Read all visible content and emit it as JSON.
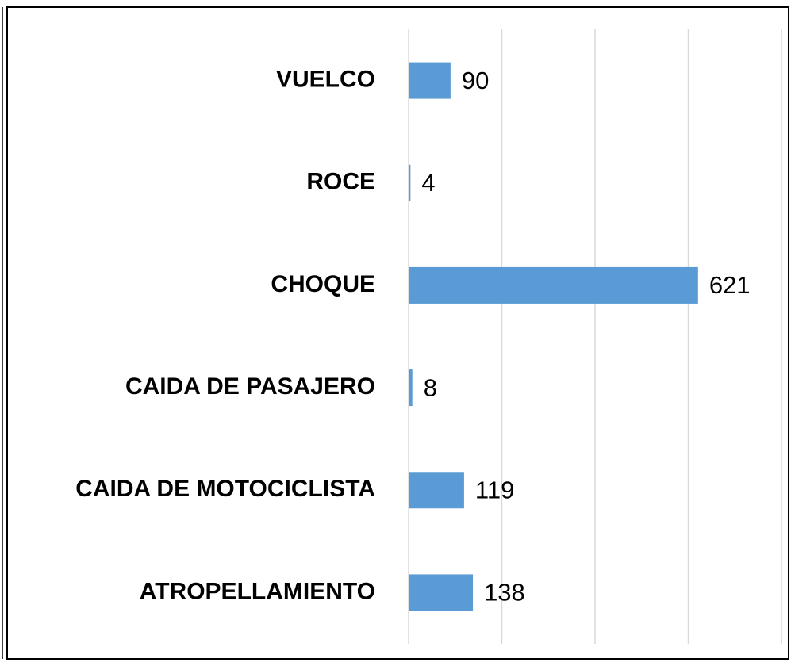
{
  "chart_data": {
    "type": "barh",
    "categories": [
      "VUELCO",
      "ROCE",
      "CHOQUE",
      "CAIDA DE PASAJERO",
      "CAIDA DE MOTOCICLISTA",
      "ATROPELLAMIENTO"
    ],
    "values": [
      90,
      4,
      621,
      8,
      119,
      138
    ],
    "color": "#5b9bd5",
    "xlim": [
      0,
      800
    ],
    "xticks": [
      0,
      200,
      400,
      600,
      800
    ],
    "grid": true
  }
}
